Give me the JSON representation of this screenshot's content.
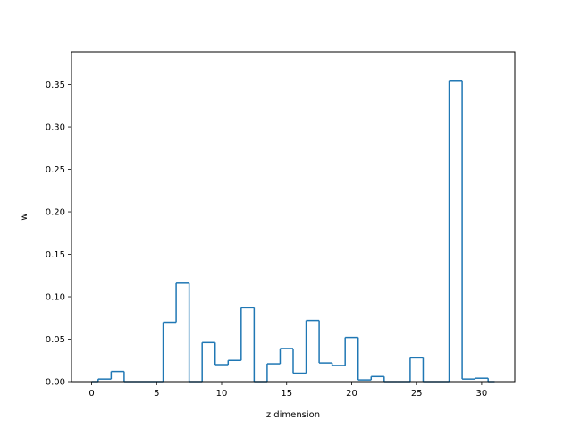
{
  "chart_data": {
    "type": "step",
    "xlabel": "z dimension",
    "ylabel": "w",
    "xlim": [
      -1.55,
      32.55
    ],
    "ylim": [
      0,
      0.3885
    ],
    "x_ticks": [
      0,
      5,
      10,
      15,
      20,
      25,
      30
    ],
    "y_ticks": [
      0.0,
      0.05,
      0.1,
      0.15,
      0.2,
      0.25,
      0.3,
      0.35
    ],
    "grid": false,
    "line_color": "#1f77b4",
    "dimensions": [
      0,
      1,
      2,
      3,
      4,
      5,
      6,
      7,
      8,
      9,
      10,
      11,
      12,
      13,
      14,
      15,
      16,
      17,
      18,
      19,
      20,
      21,
      22,
      23,
      24,
      25,
      26,
      27,
      28,
      29,
      30,
      31
    ],
    "values": [
      0.0,
      0.003,
      0.012,
      0.0,
      0.0,
      0.0,
      0.07,
      0.116,
      0.0,
      0.046,
      0.02,
      0.025,
      0.087,
      0.0,
      0.021,
      0.039,
      0.01,
      0.072,
      0.022,
      0.019,
      0.052,
      0.002,
      0.006,
      0.0,
      0.0,
      0.028,
      0.0,
      0.0,
      0.354,
      0.003,
      0.004,
      0.0
    ]
  }
}
